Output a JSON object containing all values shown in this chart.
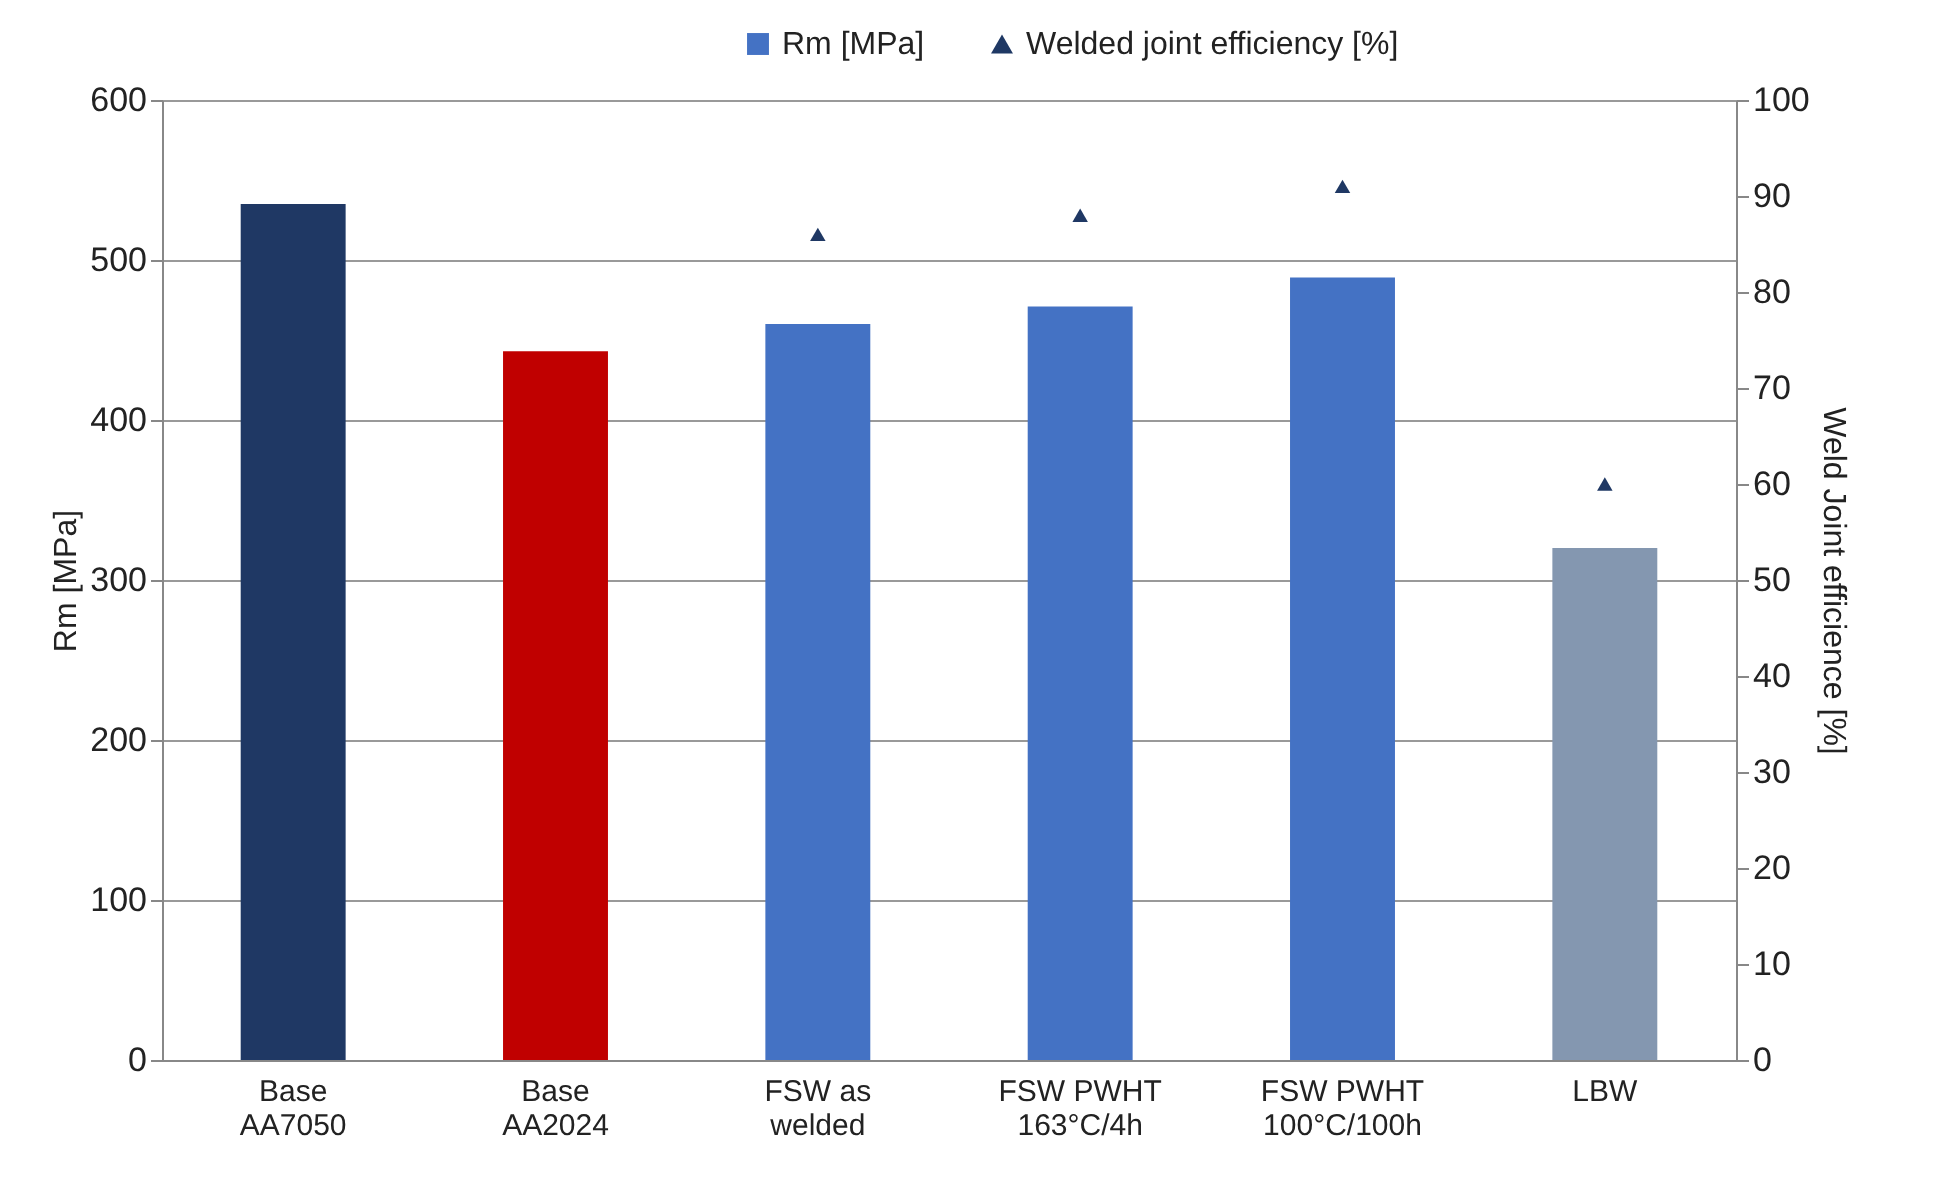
{
  "chart_data": {
    "type": "bar",
    "categories": [
      "Base\nAA7050",
      "Base\nAA2024",
      "FSW as\nwelded",
      "FSW PWHT\n163°C/4h",
      "FSW PWHT\n100°C/100h",
      "LBW"
    ],
    "series": [
      {
        "name": "Rm [MPa]",
        "color": "#4472c4",
        "colors": [
          "#1f3864",
          "#c00000",
          "#4472c4",
          "#4472c4",
          "#4472c4",
          "#8497b0"
        ],
        "values": [
          535,
          443,
          460,
          471,
          489,
          320
        ]
      },
      {
        "name": "Welded joint efficiency [%]",
        "type": "scatter",
        "axis": "y2",
        "marker": "triangle",
        "color": "#1f3864",
        "values": [
          null,
          null,
          86,
          88,
          91,
          60
        ]
      }
    ],
    "ylabel": "Rm [MPa]",
    "y2label": "Weld Joint efficience [%]",
    "ylim": [
      0,
      600
    ],
    "yticks": [
      0,
      100,
      200,
      300,
      400,
      500,
      600
    ],
    "y2lim": [
      0,
      100
    ],
    "y2ticks": [
      0,
      10,
      20,
      30,
      40,
      50,
      60,
      70,
      80,
      90,
      100
    ],
    "grid": "y",
    "legend": "top"
  }
}
